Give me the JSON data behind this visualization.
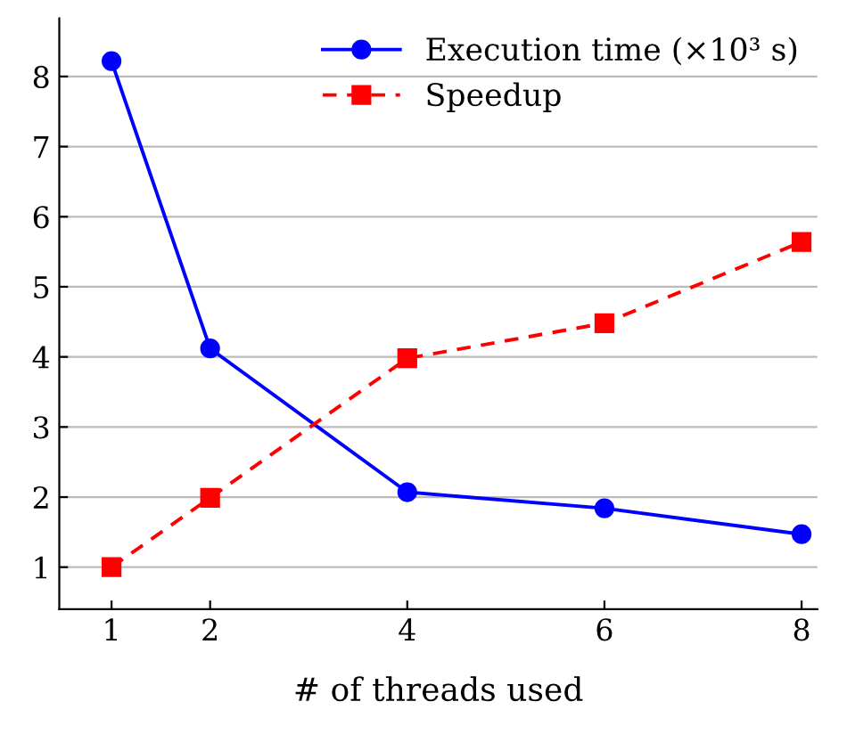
{
  "chart_data": {
    "type": "line",
    "xlabel": "# of threads used",
    "x": [
      1,
      2,
      4,
      6,
      8
    ],
    "series": [
      {
        "name": "Execution time (×10³ s)",
        "color": "#0000ff",
        "values": [
          8.22,
          4.12,
          2.07,
          1.84,
          1.47
        ],
        "marker": "circle",
        "line_style": "solid"
      },
      {
        "name": "Speedup",
        "color": "#ff0000",
        "values": [
          1.0,
          1.99,
          3.98,
          4.48,
          5.64
        ],
        "marker": "square",
        "line_style": "dashed"
      }
    ],
    "xlim": [
      0.47,
      8.16
    ],
    "ylim": [
      0.4,
      8.83
    ],
    "xticks": [
      1,
      2,
      4,
      6,
      8
    ],
    "yticks": [
      1,
      2,
      3,
      4,
      5,
      6,
      7,
      8
    ],
    "grid": "y",
    "legend": "top right"
  }
}
